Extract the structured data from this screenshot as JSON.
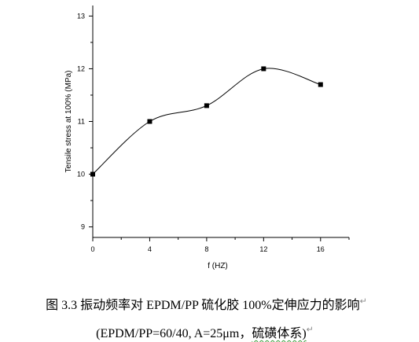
{
  "chart_data": {
    "type": "line",
    "x": [
      0,
      4,
      8,
      12,
      16
    ],
    "y": [
      10.0,
      11.0,
      11.3,
      12.0,
      11.7
    ],
    "xlabel": "f (HZ)",
    "ylabel": "Tensile stress at 100%  (MPa)",
    "xlim": [
      0,
      18
    ],
    "ylim": [
      8.8,
      13.2
    ],
    "x_ticks": [
      "0",
      "4",
      "8",
      "12",
      "16"
    ],
    "y_ticks": [
      "9",
      "10",
      "11",
      "12",
      "13"
    ],
    "grid": false,
    "legend": "none",
    "line_color": "#000000",
    "marker": "square"
  },
  "caption": {
    "line1": "图 3.3  振动频率对 EPDM/PP 硫化胶 100%定伸应力的影响",
    "line2": "(EPDM/PP=60/40, A=25μm，硫磺体系)",
    "line2_underlined": "硫磺体系)"
  }
}
